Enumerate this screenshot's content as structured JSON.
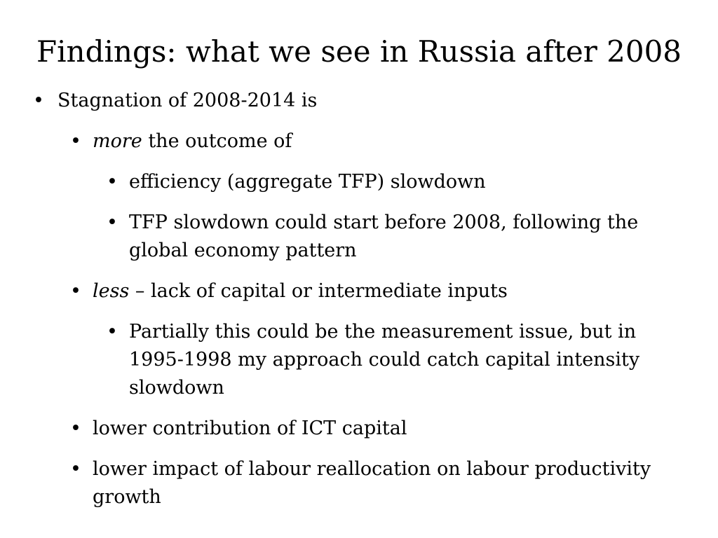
{
  "slide": {
    "title": "Findings: what we see in Russia after 2008",
    "bullet_glyph": "•",
    "items": [
      {
        "level": 1,
        "emphasis": "",
        "text": "Stagnation of 2008-2014 is"
      },
      {
        "level": 2,
        "emphasis": "more",
        "text": " the outcome of"
      },
      {
        "level": 3,
        "emphasis": "",
        "text": "efficiency (aggregate TFP) slowdown"
      },
      {
        "level": 3,
        "emphasis": "",
        "text": "TFP slowdown could start before 2008, following the global economy pattern"
      },
      {
        "level": 2,
        "emphasis": "less",
        "text": " – lack of capital or intermediate inputs"
      },
      {
        "level": 3,
        "emphasis": "",
        "text": "Partially this could be the measurement issue, but in 1995-1998 my approach could catch capital intensity slowdown"
      },
      {
        "level": 2,
        "emphasis": "",
        "text": "lower contribution of ICT capital"
      },
      {
        "level": 2,
        "emphasis": "",
        "text": "lower impact of labour reallocation on labour productivity growth"
      }
    ]
  }
}
